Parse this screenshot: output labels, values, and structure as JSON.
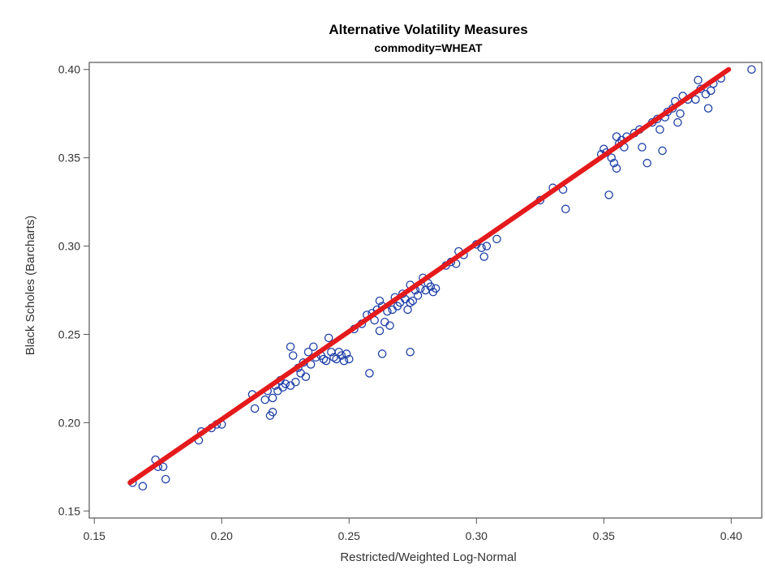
{
  "chart_data": {
    "type": "scatter",
    "title": "Alternative Volatility Measures",
    "subtitle": "commodity=WHEAT",
    "xlabel": "Restricted/Weighted Log-Normal",
    "ylabel": "Black Scholes (Barcharts)",
    "xlim": [
      0.148,
      0.412
    ],
    "ylim": [
      0.146,
      0.404
    ],
    "x_ticks": [
      0.15,
      0.2,
      0.25,
      0.3,
      0.35,
      0.4
    ],
    "y_ticks": [
      0.15,
      0.2,
      0.25,
      0.3,
      0.35,
      0.4
    ],
    "x_tick_labels": [
      "0.15",
      "0.20",
      "0.25",
      "0.30",
      "0.35",
      "0.40"
    ],
    "y_tick_labels": [
      "0.15",
      "0.20",
      "0.25",
      "0.30",
      "0.35",
      "0.40"
    ],
    "grid": false,
    "legend": "none",
    "series": [
      {
        "type": "scatter",
        "color": "#1f3fa8",
        "marker": "open-circle",
        "points": [
          [
            0.165,
            0.166
          ],
          [
            0.169,
            0.164
          ],
          [
            0.174,
            0.179
          ],
          [
            0.175,
            0.175
          ],
          [
            0.177,
            0.175
          ],
          [
            0.178,
            0.168
          ],
          [
            0.191,
            0.19
          ],
          [
            0.192,
            0.195
          ],
          [
            0.196,
            0.197
          ],
          [
            0.198,
            0.199
          ],
          [
            0.2,
            0.199
          ],
          [
            0.212,
            0.216
          ],
          [
            0.213,
            0.208
          ],
          [
            0.217,
            0.213
          ],
          [
            0.218,
            0.218
          ],
          [
            0.219,
            0.204
          ],
          [
            0.22,
            0.206
          ],
          [
            0.22,
            0.214
          ],
          [
            0.221,
            0.221
          ],
          [
            0.222,
            0.218
          ],
          [
            0.223,
            0.224
          ],
          [
            0.224,
            0.22
          ],
          [
            0.225,
            0.222
          ],
          [
            0.227,
            0.221
          ],
          [
            0.227,
            0.243
          ],
          [
            0.228,
            0.238
          ],
          [
            0.229,
            0.223
          ],
          [
            0.23,
            0.231
          ],
          [
            0.231,
            0.228
          ],
          [
            0.232,
            0.234
          ],
          [
            0.233,
            0.226
          ],
          [
            0.234,
            0.24
          ],
          [
            0.235,
            0.233
          ],
          [
            0.236,
            0.243
          ],
          [
            0.237,
            0.237
          ],
          [
            0.239,
            0.238
          ],
          [
            0.24,
            0.236
          ],
          [
            0.241,
            0.235
          ],
          [
            0.242,
            0.248
          ],
          [
            0.243,
            0.24
          ],
          [
            0.244,
            0.237
          ],
          [
            0.245,
            0.236
          ],
          [
            0.246,
            0.24
          ],
          [
            0.247,
            0.238
          ],
          [
            0.248,
            0.235
          ],
          [
            0.249,
            0.239
          ],
          [
            0.25,
            0.236
          ],
          [
            0.252,
            0.253
          ],
          [
            0.255,
            0.256
          ],
          [
            0.257,
            0.261
          ],
          [
            0.258,
            0.228
          ],
          [
            0.259,
            0.262
          ],
          [
            0.26,
            0.258
          ],
          [
            0.261,
            0.264
          ],
          [
            0.262,
            0.252
          ],
          [
            0.262,
            0.269
          ],
          [
            0.263,
            0.266
          ],
          [
            0.263,
            0.239
          ],
          [
            0.264,
            0.257
          ],
          [
            0.265,
            0.263
          ],
          [
            0.266,
            0.255
          ],
          [
            0.267,
            0.264
          ],
          [
            0.268,
            0.271
          ],
          [
            0.269,
            0.266
          ],
          [
            0.27,
            0.268
          ],
          [
            0.271,
            0.273
          ],
          [
            0.272,
            0.27
          ],
          [
            0.273,
            0.264
          ],
          [
            0.274,
            0.268
          ],
          [
            0.274,
            0.278
          ],
          [
            0.274,
            0.24
          ],
          [
            0.275,
            0.269
          ],
          [
            0.276,
            0.275
          ],
          [
            0.277,
            0.272
          ],
          [
            0.278,
            0.276
          ],
          [
            0.279,
            0.282
          ],
          [
            0.28,
            0.275
          ],
          [
            0.281,
            0.279
          ],
          [
            0.282,
            0.277
          ],
          [
            0.283,
            0.274
          ],
          [
            0.284,
            0.276
          ],
          [
            0.288,
            0.289
          ],
          [
            0.29,
            0.291
          ],
          [
            0.292,
            0.29
          ],
          [
            0.293,
            0.297
          ],
          [
            0.295,
            0.295
          ],
          [
            0.3,
            0.301
          ],
          [
            0.302,
            0.299
          ],
          [
            0.303,
            0.294
          ],
          [
            0.304,
            0.3
          ],
          [
            0.308,
            0.304
          ],
          [
            0.325,
            0.326
          ],
          [
            0.33,
            0.333
          ],
          [
            0.334,
            0.332
          ],
          [
            0.335,
            0.321
          ],
          [
            0.349,
            0.352
          ],
          [
            0.35,
            0.355
          ],
          [
            0.351,
            0.353
          ],
          [
            0.352,
            0.329
          ],
          [
            0.353,
            0.35
          ],
          [
            0.354,
            0.347
          ],
          [
            0.355,
            0.344
          ],
          [
            0.355,
            0.362
          ],
          [
            0.356,
            0.358
          ],
          [
            0.357,
            0.36
          ],
          [
            0.358,
            0.356
          ],
          [
            0.359,
            0.362
          ],
          [
            0.362,
            0.364
          ],
          [
            0.364,
            0.366
          ],
          [
            0.365,
            0.356
          ],
          [
            0.367,
            0.347
          ],
          [
            0.369,
            0.37
          ],
          [
            0.371,
            0.372
          ],
          [
            0.372,
            0.366
          ],
          [
            0.373,
            0.354
          ],
          [
            0.374,
            0.373
          ],
          [
            0.375,
            0.376
          ],
          [
            0.377,
            0.378
          ],
          [
            0.378,
            0.382
          ],
          [
            0.379,
            0.37
          ],
          [
            0.38,
            0.375
          ],
          [
            0.381,
            0.385
          ],
          [
            0.383,
            0.383
          ],
          [
            0.386,
            0.383
          ],
          [
            0.387,
            0.394
          ],
          [
            0.388,
            0.389
          ],
          [
            0.39,
            0.386
          ],
          [
            0.391,
            0.378
          ],
          [
            0.392,
            0.388
          ],
          [
            0.393,
            0.392
          ],
          [
            0.396,
            0.395
          ],
          [
            0.408,
            0.4
          ]
        ]
      },
      {
        "type": "line",
        "color": "#e41a1c",
        "points": [
          [
            0.164,
            0.166
          ],
          [
            0.399,
            0.4
          ]
        ]
      }
    ]
  }
}
